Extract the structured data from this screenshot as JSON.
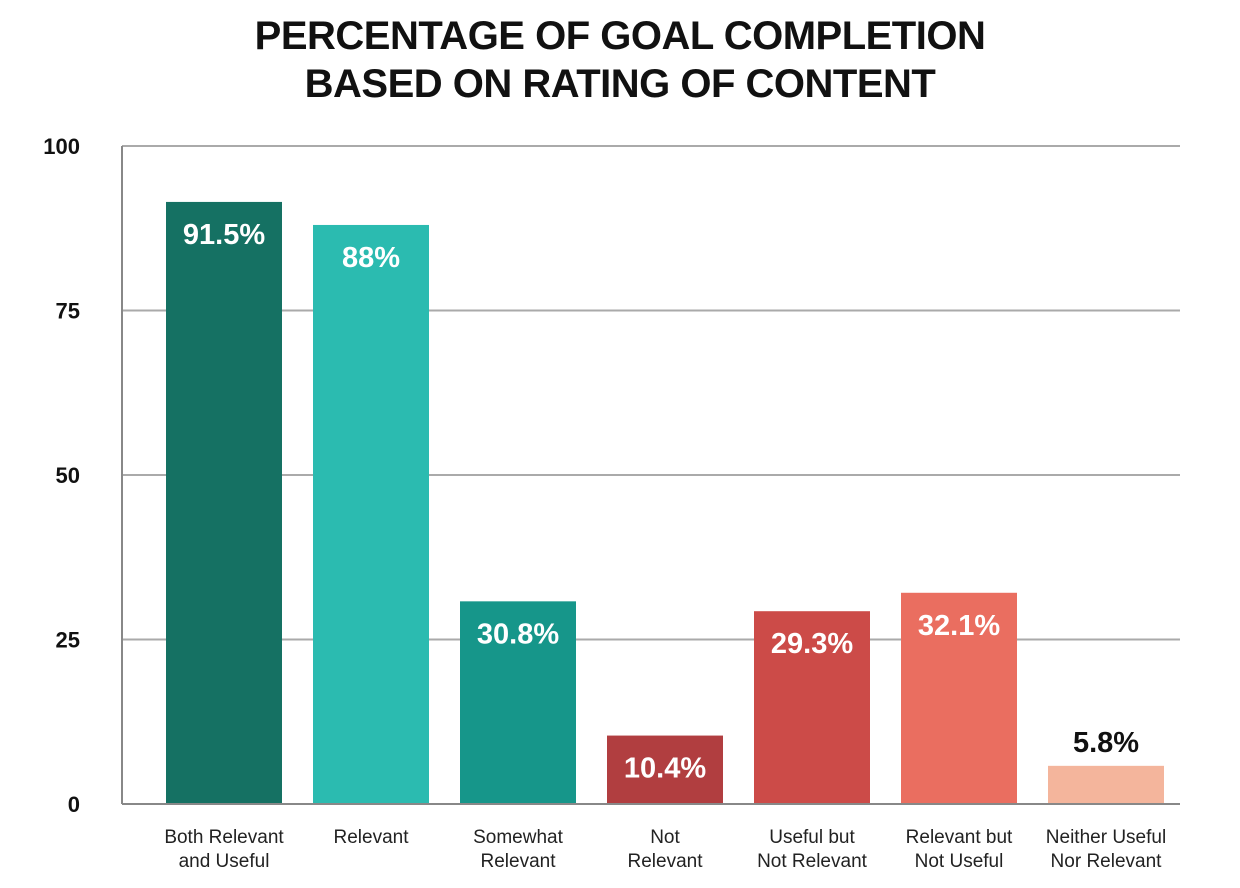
{
  "chart_data": {
    "type": "bar",
    "title_lines": [
      "PERCENTAGE OF GOAL COMPLETION",
      "BASED ON RATING OF CONTENT"
    ],
    "xlabel": "",
    "ylabel": "",
    "ylim": [
      0,
      100
    ],
    "yticks": [
      0,
      25,
      50,
      75,
      100
    ],
    "grid": true,
    "legend": "none",
    "categories": [
      [
        "Both Relevant",
        "and Useful"
      ],
      [
        "Relevant"
      ],
      [
        "Somewhat",
        "Relevant"
      ],
      [
        "Not",
        "Relevant"
      ],
      [
        "Useful but",
        "Not Relevant"
      ],
      [
        "Relevant but",
        "Not Useful"
      ],
      [
        "Neither Useful",
        "Nor Relevant"
      ]
    ],
    "values": [
      91.5,
      88,
      30.8,
      10.4,
      29.3,
      32.1,
      5.8
    ],
    "data_labels": [
      "91.5%",
      "88%",
      "30.8%",
      "10.4%",
      "29.3%",
      "32.1%",
      "5.8%"
    ],
    "colors": [
      "#157163",
      "#2bbbb0",
      "#16968a",
      "#b13e40",
      "#cc4b48",
      "#ea6e60",
      "#f4b59c"
    ],
    "label_colors": [
      "#ffffff",
      "#ffffff",
      "#ffffff",
      "#ffffff",
      "#ffffff",
      "#ffffff",
      "#111111"
    ]
  }
}
